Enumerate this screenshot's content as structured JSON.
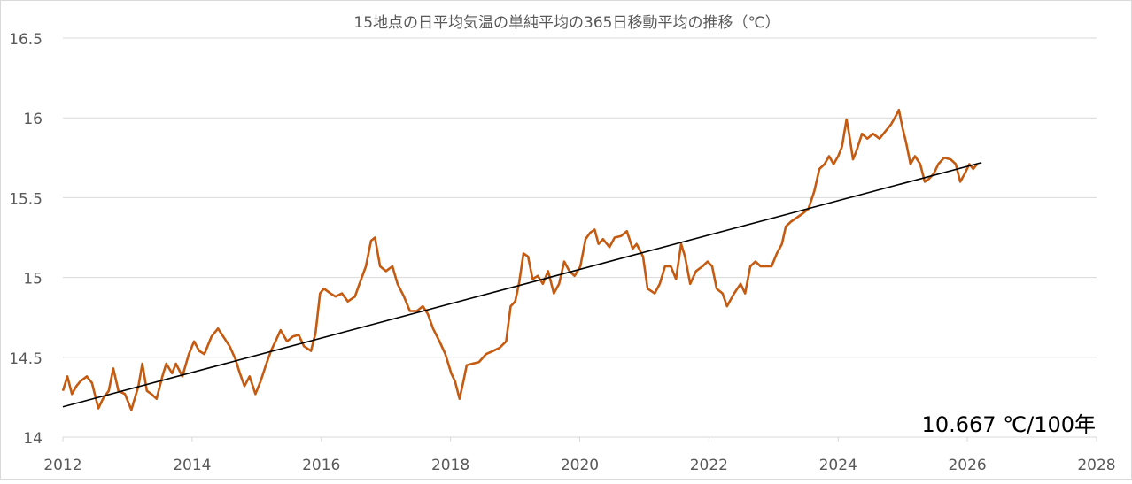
{
  "chart_data": {
    "type": "line",
    "title": "15地点の日平均気温の単純平均の365日移動平均の推移（℃）",
    "xlabel": "",
    "ylabel": "",
    "xlim": [
      2012,
      2028
    ],
    "ylim": [
      14,
      16.5
    ],
    "x_ticks": [
      "2012",
      "2014",
      "2016",
      "2018",
      "2020",
      "2022",
      "2024",
      "2026",
      "2028"
    ],
    "y_ticks": [
      "14",
      "14.5",
      "15",
      "15.5",
      "16",
      "16.5"
    ],
    "grid": true,
    "legend": "none",
    "annotation": "10.667 ℃/100年",
    "colors": {
      "series": "#C55A11",
      "trend": "#000000",
      "grid": "#d9d9d9"
    },
    "series": [
      {
        "x": [
          2012.0,
          2012.07,
          2012.14,
          2012.21,
          2012.27,
          2012.37,
          2012.45,
          2012.55,
          2012.62,
          2012.71,
          2012.78,
          2012.86,
          2012.96,
          2013.06,
          2013.17,
          2013.23,
          2013.3,
          2013.37,
          2013.45,
          2013.54,
          2013.6,
          2013.69,
          2013.75,
          2013.85,
          2013.95,
          2014.03,
          2014.11,
          2014.19,
          2014.3,
          2014.4,
          2014.5,
          2014.58,
          2014.67,
          2014.74,
          2014.81,
          2014.89,
          2014.98,
          2015.06,
          2015.15,
          2015.22,
          2015.29,
          2015.37,
          2015.47,
          2015.56,
          2015.65,
          2015.73,
          2015.84,
          2015.91,
          2015.98,
          2016.04,
          2016.14,
          2016.22,
          2016.32,
          2016.41,
          2016.52,
          2016.59,
          2016.69,
          2016.77,
          2016.83,
          2016.91,
          2017.0,
          2017.1,
          2017.18,
          2017.28,
          2017.37,
          2017.48,
          2017.57,
          2017.65,
          2017.73,
          2017.83,
          2017.92,
          2018.01,
          2018.07,
          2018.14,
          2018.2,
          2018.25,
          2018.34,
          2018.44,
          2018.55,
          2018.66,
          2018.76,
          2018.86,
          2018.93,
          2019.0,
          2019.06,
          2019.13,
          2019.2,
          2019.27,
          2019.35,
          2019.43,
          2019.51,
          2019.6,
          2019.68,
          2019.76,
          2019.84,
          2019.92,
          2020.01,
          2020.09,
          2020.16,
          2020.23,
          2020.29,
          2020.36,
          2020.46,
          2020.54,
          2020.64,
          2020.73,
          2020.82,
          2020.88,
          2020.98,
          2021.05,
          2021.16,
          2021.24,
          2021.32,
          2021.41,
          2021.49,
          2021.57,
          2021.63,
          2021.71,
          2021.8,
          2021.9,
          2021.98,
          2022.05,
          2022.12,
          2022.21,
          2022.28,
          2022.39,
          2022.49,
          2022.56,
          2022.64,
          2022.72,
          2022.8,
          2022.9,
          2022.97,
          2023.05,
          2023.13,
          2023.19,
          2023.27,
          2023.38,
          2023.45,
          2023.54,
          2023.63,
          2023.71,
          2023.79,
          2023.86,
          2023.93,
          2024.0,
          2024.06,
          2024.13,
          2024.17,
          2024.23,
          2024.28,
          2024.37,
          2024.45,
          2024.54,
          2024.64,
          2024.72,
          2024.82,
          2024.89,
          2024.94,
          2025.0,
          2025.05,
          2025.12,
          2025.19,
          2025.27,
          2025.34,
          2025.41,
          2025.48,
          2025.55,
          2025.64,
          2025.74,
          2025.82,
          2025.89,
          2025.96,
          2026.03,
          2026.09,
          2026.15
        ],
        "y": [
          14.29,
          14.38,
          14.27,
          14.32,
          14.35,
          14.38,
          14.34,
          14.18,
          14.24,
          14.29,
          14.43,
          14.29,
          14.27,
          14.17,
          14.32,
          14.46,
          14.29,
          14.27,
          14.24,
          14.38,
          14.46,
          14.4,
          14.46,
          14.38,
          14.52,
          14.6,
          14.54,
          14.52,
          14.63,
          14.68,
          14.62,
          14.57,
          14.49,
          14.4,
          14.32,
          14.38,
          14.27,
          14.35,
          14.46,
          14.54,
          14.6,
          14.67,
          14.6,
          14.63,
          14.64,
          14.57,
          14.54,
          14.65,
          14.9,
          14.93,
          14.9,
          14.88,
          14.9,
          14.85,
          14.88,
          14.96,
          15.07,
          15.23,
          15.25,
          15.07,
          15.04,
          15.07,
          14.96,
          14.88,
          14.79,
          14.79,
          14.82,
          14.77,
          14.68,
          14.6,
          14.52,
          14.4,
          14.35,
          14.24,
          14.35,
          14.45,
          14.46,
          14.47,
          14.52,
          14.54,
          14.56,
          14.6,
          14.82,
          14.85,
          14.96,
          15.15,
          15.13,
          14.99,
          15.01,
          14.96,
          15.04,
          14.9,
          14.96,
          15.1,
          15.04,
          15.01,
          15.07,
          15.24,
          15.28,
          15.3,
          15.21,
          15.24,
          15.19,
          15.25,
          15.26,
          15.29,
          15.18,
          15.21,
          15.13,
          14.93,
          14.9,
          14.96,
          15.07,
          15.07,
          14.99,
          15.21,
          15.13,
          14.96,
          15.04,
          15.07,
          15.1,
          15.07,
          14.93,
          14.9,
          14.82,
          14.9,
          14.96,
          14.9,
          15.07,
          15.1,
          15.07,
          15.07,
          15.07,
          15.15,
          15.21,
          15.32,
          15.35,
          15.38,
          15.4,
          15.43,
          15.54,
          15.68,
          15.71,
          15.76,
          15.71,
          15.76,
          15.82,
          15.99,
          15.9,
          15.74,
          15.79,
          15.9,
          15.87,
          15.9,
          15.87,
          15.91,
          15.96,
          16.01,
          16.05,
          15.93,
          15.85,
          15.71,
          15.76,
          15.71,
          15.6,
          15.62,
          15.65,
          15.71,
          15.75,
          15.74,
          15.71,
          15.6,
          15.65,
          15.71,
          15.68,
          15.71
        ]
      }
    ],
    "trendline": {
      "x": [
        2012.0,
        2026.22
      ],
      "y": [
        14.19,
        15.72
      ]
    }
  }
}
